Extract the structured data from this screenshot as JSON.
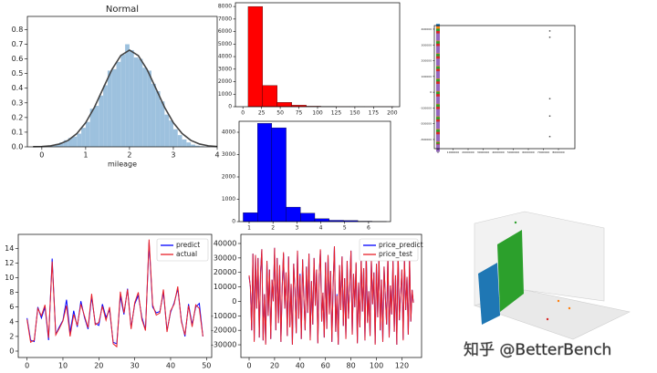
{
  "chart_data": [
    {
      "type": "histogram",
      "title": "Normal",
      "x_label": "mileage",
      "color": "#9dc1de",
      "bins": [
        -0.2,
        -0.1,
        0.0,
        0.1,
        0.2,
        0.3,
        0.4,
        0.5,
        0.6,
        0.7,
        0.8,
        0.9,
        1.0,
        1.1,
        1.2,
        1.3,
        1.4,
        1.5,
        1.6,
        1.7,
        1.8,
        1.9,
        2.0,
        2.1,
        2.2,
        2.3,
        2.4,
        2.5,
        2.6,
        2.7,
        2.8,
        2.9,
        3.0,
        3.1,
        3.2,
        3.3,
        3.4,
        3.5,
        3.6,
        3.7,
        3.8
      ],
      "counts": [
        0.002,
        0.003,
        0.005,
        0.008,
        0.012,
        0.02,
        0.03,
        0.045,
        0.06,
        0.07,
        0.09,
        0.13,
        0.17,
        0.26,
        0.28,
        0.35,
        0.42,
        0.52,
        0.53,
        0.58,
        0.63,
        0.7,
        0.66,
        0.61,
        0.6,
        0.54,
        0.52,
        0.43,
        0.38,
        0.31,
        0.22,
        0.18,
        0.12,
        0.08,
        0.05,
        0.03,
        0.015,
        0.008,
        0.004,
        0.002
      ],
      "curve": {
        "color": "#444444",
        "x": [
          -0.2,
          0.0,
          0.2,
          0.4,
          0.6,
          0.8,
          1.0,
          1.2,
          1.4,
          1.6,
          1.8,
          2.0,
          2.2,
          2.4,
          2.6,
          2.8,
          3.0,
          3.2,
          3.4,
          3.6,
          3.8,
          4.0
        ],
        "values": [
          0.001,
          0.002,
          0.007,
          0.019,
          0.044,
          0.091,
          0.165,
          0.27,
          0.4,
          0.528,
          0.623,
          0.66,
          0.623,
          0.528,
          0.4,
          0.27,
          0.165,
          0.091,
          0.044,
          0.019,
          0.007,
          0.002
        ]
      },
      "xlim": [
        -0.33,
        4.0
      ],
      "ylim": [
        0,
        0.89
      ],
      "xticks": [
        0,
        1,
        2,
        3,
        4
      ],
      "yticks": [
        {
          "value": 0,
          "label": "0.0"
        },
        0.1,
        0.2,
        0.3,
        0.4,
        0.5,
        0.6,
        0.7,
        0.8
      ]
    },
    {
      "type": "histogram",
      "color": "#ff0000",
      "bins": [
        7,
        26.5,
        46,
        65.5,
        85,
        104.5,
        124,
        143.5,
        163,
        182.5,
        202
      ],
      "counts": [
        8000,
        1700,
        350,
        120,
        40,
        15,
        8,
        4,
        2,
        2
      ],
      "xlim": [
        -10,
        210
      ],
      "ylim": [
        0,
        8300
      ],
      "xticks": [
        0,
        25,
        50,
        75,
        100,
        125,
        150,
        175,
        200
      ],
      "yticks": [
        0,
        1000,
        2000,
        3000,
        4000,
        5000,
        6000,
        7000,
        8000
      ]
    },
    {
      "type": "histogram",
      "color": "#0000ff",
      "bins": [
        0.75,
        1.35,
        1.95,
        2.55,
        3.15,
        3.75,
        4.35,
        4.95,
        5.55,
        6.15,
        6.75
      ],
      "counts": [
        400,
        4400,
        4200,
        650,
        380,
        130,
        60,
        50,
        20,
        5
      ],
      "xlim": [
        0.58,
        6.92
      ],
      "ylim": [
        0,
        4490
      ],
      "xticks": [
        1,
        2,
        3,
        4,
        5,
        6
      ],
      "yticks": [
        0,
        1000,
        2000,
        3000,
        4000
      ]
    },
    {
      "type": "scatter",
      "series": [
        {
          "color": "#1f77b4",
          "x": [
            0,
            0,
            0,
            0,
            0,
            0,
            0,
            0,
            0,
            0
          ],
          "y": [
            410000,
            330000,
            250000,
            170000,
            90000,
            10000,
            -70000,
            -150000,
            -230000,
            -310000
          ]
        },
        {
          "color": "#ff7f0e",
          "x": [
            0,
            0,
            0,
            0,
            0,
            0,
            0,
            0,
            0,
            0
          ],
          "y": [
            395000,
            315000,
            235000,
            155000,
            75000,
            -5000,
            -85000,
            -165000,
            -245000,
            -325000
          ]
        },
        {
          "color": "#2ca02c",
          "x": [
            0,
            0,
            0,
            0,
            0,
            0,
            0,
            0,
            0,
            0
          ],
          "y": [
            380000,
            300000,
            220000,
            140000,
            60000,
            -20000,
            -100000,
            -180000,
            -260000,
            -340000
          ]
        },
        {
          "color": "#d62728",
          "x": [
            0,
            0,
            0,
            0,
            0,
            0,
            0,
            0,
            0,
            0
          ],
          "y": [
            365000,
            285000,
            205000,
            125000,
            45000,
            -35000,
            -115000,
            -195000,
            -275000,
            -350000
          ]
        },
        {
          "color": "#9467bd",
          "x": [
            0,
            0,
            0,
            0,
            0,
            0,
            0,
            0,
            0,
            0
          ],
          "y": [
            350000,
            270000,
            190000,
            110000,
            30000,
            -50000,
            -130000,
            -210000,
            -290000,
            -355000
          ]
        },
        {
          "color": "#555555",
          "x": [
            7500000,
            7500000,
            7500000,
            7500000,
            7500000
          ],
          "y": [
            370000,
            330000,
            -60000,
            -170000,
            -300000
          ]
        }
      ],
      "xlim": [
        -242000,
        9090000
      ],
      "ylim": [
        -358000,
        423000
      ],
      "xticks": [
        0,
        1000000,
        2000000,
        3000000,
        4000000,
        5000000,
        6000000,
        7000000,
        8000000
      ],
      "yticks": [
        -300000,
        -200000,
        -100000,
        0,
        100000,
        200000,
        300000,
        400000
      ]
    },
    {
      "type": "line",
      "legend": "upper right",
      "series": [
        {
          "name": "predict",
          "color": "#0000ff",
          "values": [
            4.5,
            1.5,
            1.3,
            6.0,
            4.5,
            6.0,
            1.5,
            12.6,
            2.3,
            3.3,
            4.2,
            7.0,
            2.5,
            5.5,
            3.3,
            6.8,
            4.6,
            3.0,
            7.4,
            3.8,
            3.5,
            6.4,
            4.6,
            5.6,
            1.2,
            1.0,
            7.5,
            5.0,
            8.5,
            3.2,
            6.4,
            7.6,
            4.6,
            2.9,
            14.8,
            6.0,
            5.2,
            5.4,
            8.0,
            2.8,
            5.3,
            6.6,
            8.5,
            4.2,
            2.0,
            6.4,
            3.6,
            6.0,
            6.5,
            2.0
          ]
        },
        {
          "name": "actual",
          "color": "#e8202a",
          "values": [
            4.3,
            1.2,
            1.5,
            5.8,
            4.8,
            6.3,
            1.8,
            12.2,
            2.2,
            3.1,
            4.1,
            6.2,
            2.0,
            5.0,
            3.5,
            6.4,
            4.8,
            3.2,
            7.8,
            3.6,
            3.9,
            6.1,
            4.2,
            6.0,
            1.0,
            0.6,
            8.1,
            5.2,
            8.4,
            3.0,
            6.6,
            8.0,
            4.3,
            2.8,
            15.2,
            6.3,
            4.9,
            5.2,
            8.4,
            2.6,
            5.5,
            6.4,
            8.8,
            4.0,
            2.2,
            6.2,
            3.3,
            6.3,
            5.8,
            2.0
          ]
        }
      ],
      "xlim": [
        -2.45,
        51.45
      ],
      "ylim": [
        -0.87,
        15.9
      ],
      "xticks": [
        0,
        10,
        20,
        30,
        40,
        50
      ],
      "yticks": [
        0,
        2,
        4,
        6,
        8,
        10,
        12,
        14
      ]
    },
    {
      "type": "line",
      "legend": "upper right",
      "series": [
        {
          "name": "price_predict",
          "color": "#0000ff",
          "values": [
            17000,
            10000,
            -20000,
            33000,
            -27000,
            32000,
            -5000,
            30000,
            -25000,
            21000,
            36000,
            -27000,
            5000,
            -29000,
            28000,
            -10000,
            22000,
            -26000,
            15000,
            1000,
            37000,
            -20000,
            30000,
            -15000,
            25000,
            -28000,
            10000,
            33000,
            -5000,
            20000,
            -24000,
            31000,
            -17000,
            12000,
            -30000,
            26000,
            8000,
            -22000,
            35000,
            -12000,
            19000,
            -26000,
            29000,
            2000,
            -20000,
            24000,
            -8000,
            33000,
            -26000,
            14000,
            -16000,
            30000,
            -3000,
            22000,
            -29000,
            17000,
            35000,
            -14000,
            6000,
            -25000,
            27000,
            -19000,
            32000,
            -8000,
            21000,
            -28000,
            12000,
            38000,
            -21000,
            5000,
            -30000,
            25000,
            -6000,
            31000,
            -17000,
            16000,
            -25000,
            28000,
            -12000,
            9000,
            35000,
            -23000,
            19000,
            -4000,
            26000,
            -29000,
            13000,
            -18000,
            30000,
            -7000,
            23000,
            -27000,
            34000,
            -14000,
            7000,
            -24000,
            29000,
            -2000,
            20000,
            -29000,
            26000,
            -11000,
            32000,
            -20000,
            15000,
            -28000,
            24000,
            3000,
            -16000,
            32000,
            -25000,
            11000,
            -9000,
            28000,
            -21000,
            18000,
            -30000,
            36000,
            -13000,
            5000,
            22000,
            -26000,
            30000,
            -6000,
            17000,
            -23000,
            31000,
            -14000,
            8000,
            -1000
          ]
        },
        {
          "name": "price_test",
          "color": "#e8202a",
          "values": [
            18000,
            10000,
            -20000,
            33000,
            -28000,
            32000,
            -5000,
            30000,
            -25000,
            20000,
            36000,
            -27000,
            5000,
            -30000,
            28000,
            -10000,
            22000,
            -26000,
            15000,
            0,
            37000,
            -20000,
            30000,
            -15000,
            25000,
            -28000,
            10000,
            34000,
            -5000,
            20000,
            -24000,
            31000,
            -18000,
            12000,
            -30000,
            26000,
            8000,
            -22000,
            35000,
            -12000,
            18000,
            -26000,
            29000,
            2000,
            -20000,
            24000,
            -8000,
            33000,
            -27000,
            14000,
            -16000,
            30000,
            -3000,
            22000,
            -29000,
            17000,
            36000,
            -14000,
            6000,
            -25000,
            27000,
            -19000,
            32000,
            -9000,
            21000,
            -28000,
            12000,
            38000,
            -21000,
            4000,
            -30000,
            25000,
            -6000,
            31000,
            -17000,
            16000,
            -26000,
            28000,
            -12000,
            9000,
            35000,
            -23000,
            19000,
            -4000,
            27000,
            -29000,
            13000,
            -18000,
            30000,
            -7000,
            23000,
            -27000,
            34000,
            -15000,
            7000,
            -24000,
            29000,
            -2000,
            20000,
            -30000,
            26000,
            -11000,
            32000,
            -20000,
            15000,
            -28000,
            24000,
            3000,
            -16000,
            33000,
            -25000,
            11000,
            -9000,
            28000,
            -21000,
            18000,
            -30000,
            36000,
            -13000,
            5000,
            22000,
            -27000,
            30000,
            -6000,
            17000,
            -23000,
            31000,
            -14000,
            8000,
            -1000
          ]
        }
      ],
      "xlim": [
        -6.45,
        135.45
      ],
      "ylim": [
        -38800,
        46300
      ],
      "xticks": [
        0,
        20,
        40,
        60,
        80,
        100,
        120
      ],
      "yticks": [
        -30000,
        -20000,
        -10000,
        0,
        10000,
        20000,
        30000,
        40000
      ]
    }
  ],
  "watermark": "知乎 @BetterBench"
}
